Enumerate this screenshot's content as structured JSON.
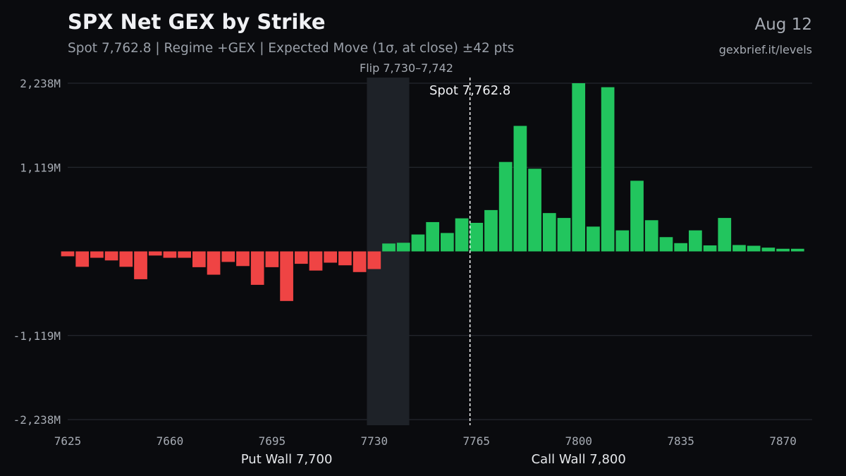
{
  "header": {
    "title": "SPX Net GEX by Strike",
    "subtitle": "Spot 7,762.8 | Regime +GEX | Expected Move (1σ, at close) ±42 pts",
    "date": "Aug 12",
    "source": "gexbrief.it/levels"
  },
  "colors": {
    "background": "#0a0b0e",
    "positive": "#22c55e",
    "negative": "#ef4444",
    "grid": "#2a2e35",
    "flip_band": "#1e2228",
    "spot_line": "#ffffff"
  },
  "chart_data": {
    "type": "bar",
    "x_unit": "strike",
    "y_unit": "M",
    "ylim": [
      -2238,
      2238
    ],
    "xlim": [
      7625,
      7880
    ],
    "y_ticks": [
      2238,
      1119,
      -1119,
      -2238
    ],
    "y_tick_labels": [
      "2,238M",
      "1,119M",
      "-1,119M",
      "-2,238M"
    ],
    "x_ticks": [
      7625,
      7660,
      7695,
      7730,
      7765,
      7800,
      7835,
      7870
    ],
    "x_tick_labels": [
      "7625",
      "7660",
      "7695",
      "7730",
      "7765",
      "7800",
      "7835",
      "7870"
    ],
    "grid": "horizontal",
    "categories": [
      7625,
      7630,
      7635,
      7640,
      7645,
      7650,
      7655,
      7660,
      7665,
      7670,
      7675,
      7680,
      7685,
      7690,
      7695,
      7700,
      7705,
      7710,
      7715,
      7720,
      7725,
      7730,
      7735,
      7740,
      7745,
      7750,
      7755,
      7760,
      7765,
      7770,
      7775,
      7780,
      7785,
      7790,
      7795,
      7800,
      7805,
      7810,
      7815,
      7820,
      7825,
      7830,
      7835,
      7840,
      7845,
      7850,
      7855,
      7860,
      7865,
      7870,
      7875
    ],
    "values": [
      -65,
      -205,
      -85,
      -120,
      -205,
      -370,
      -55,
      -85,
      -85,
      -210,
      -310,
      -140,
      -195,
      -445,
      -210,
      -660,
      -165,
      -255,
      -150,
      -185,
      -275,
      -235,
      105,
      115,
      225,
      390,
      245,
      440,
      380,
      550,
      1190,
      1670,
      1100,
      510,
      445,
      2238,
      330,
      2185,
      280,
      940,
      415,
      190,
      110,
      280,
      80,
      445,
      85,
      75,
      50,
      35,
      35
    ],
    "flip": {
      "label": "Flip 7,730–7,742",
      "range": [
        7730,
        7742
      ]
    },
    "spot": {
      "label": "Spot 7,762.8",
      "value": 7762.8
    },
    "walls": [
      {
        "label": "Put Wall 7,700",
        "strike": 7700
      },
      {
        "label": "Call Wall 7,800",
        "strike": 7800
      }
    ]
  }
}
